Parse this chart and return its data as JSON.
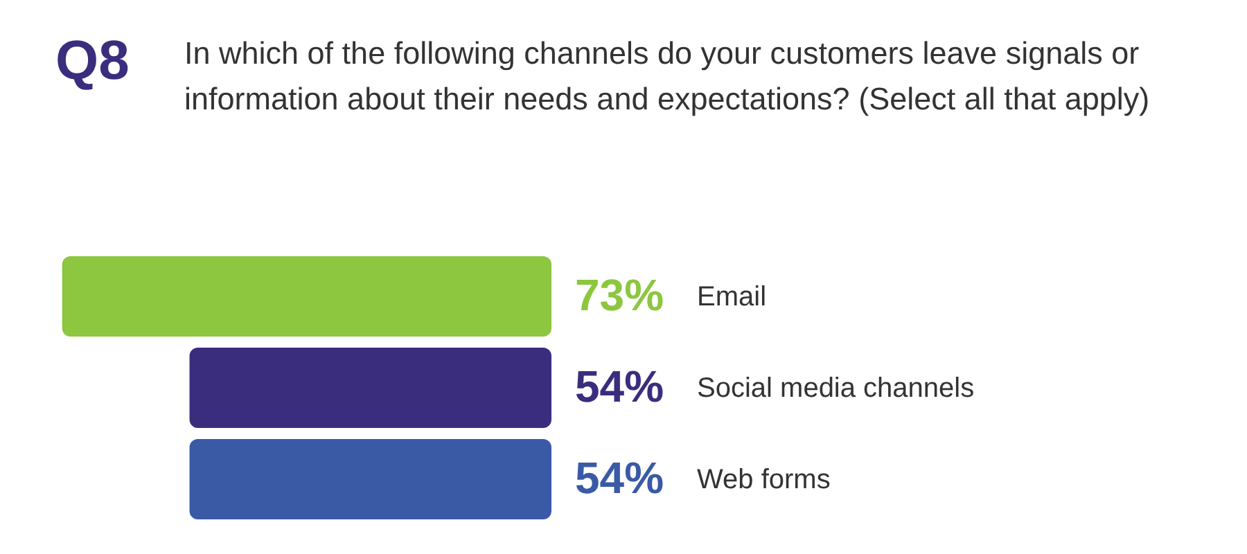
{
  "chart_data": {
    "type": "bar",
    "orientation": "horizontal",
    "title": "Q8",
    "subtitle": "In which of the following channels do your customers leave signals or information about their needs and expectations? (Select all that apply)",
    "categories": [
      "Email",
      "Social media channels",
      "Web forms"
    ],
    "values": [
      73,
      54,
      54
    ],
    "colors": [
      "#8dc63f",
      "#3b2d7d",
      "#3a5aa6"
    ],
    "value_labels": [
      "73%",
      "54%",
      "54%"
    ],
    "tick_labels": false
  }
}
